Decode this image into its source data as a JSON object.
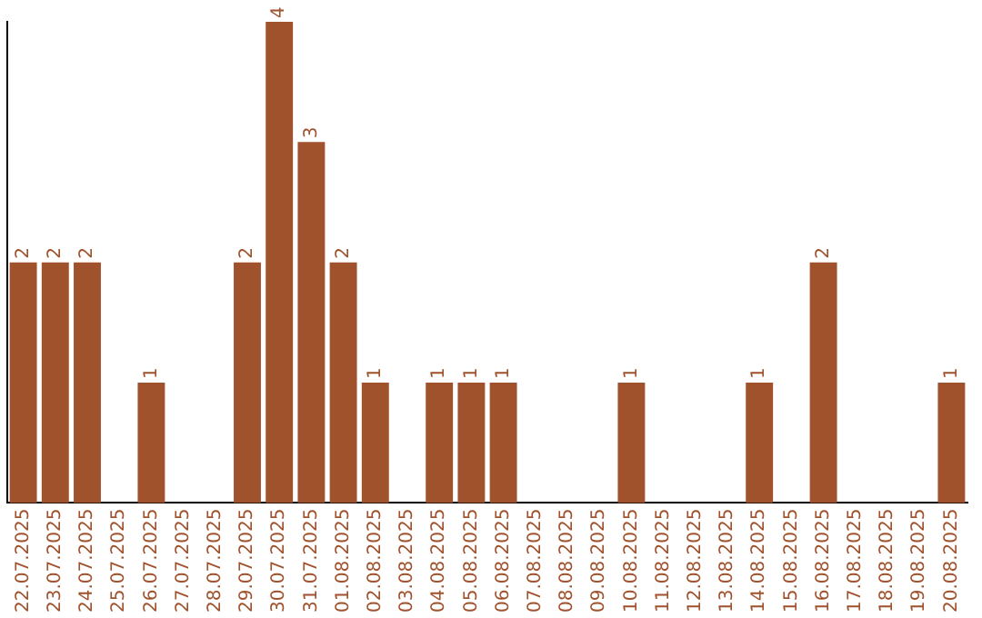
{
  "chart_data": {
    "type": "bar",
    "categories": [
      "22.07.2025",
      "23.07.2025",
      "24.07.2025",
      "25.07.2025",
      "26.07.2025",
      "27.07.2025",
      "28.07.2025",
      "29.07.2025",
      "30.07.2025",
      "31.07.2025",
      "01.08.2025",
      "02.08.2025",
      "03.08.2025",
      "04.08.2025",
      "05.08.2025",
      "06.08.2025",
      "07.08.2025",
      "08.08.2025",
      "09.08.2025",
      "10.08.2025",
      "11.08.2025",
      "12.08.2025",
      "13.08.2025",
      "14.08.2025",
      "15.08.2025",
      "16.08.2025",
      "17.08.2025",
      "18.08.2025",
      "19.08.2025",
      "20.08.2025"
    ],
    "values": [
      2,
      2,
      2,
      0,
      1,
      0,
      0,
      2,
      4,
      3,
      2,
      1,
      0,
      1,
      1,
      1,
      0,
      0,
      0,
      1,
      0,
      0,
      0,
      1,
      0,
      2,
      0,
      0,
      0,
      1
    ],
    "value_labels": [
      "2",
      "2",
      "2",
      null,
      "1",
      null,
      null,
      "2",
      "4",
      "3",
      "2",
      "1",
      null,
      "1",
      "1",
      "1",
      null,
      null,
      null,
      "1",
      null,
      null,
      null,
      "1",
      null,
      "2",
      null,
      null,
      null,
      "1"
    ],
    "color": "#a0522d",
    "grid": false,
    "legend": false,
    "tick_labels": "x"
  }
}
